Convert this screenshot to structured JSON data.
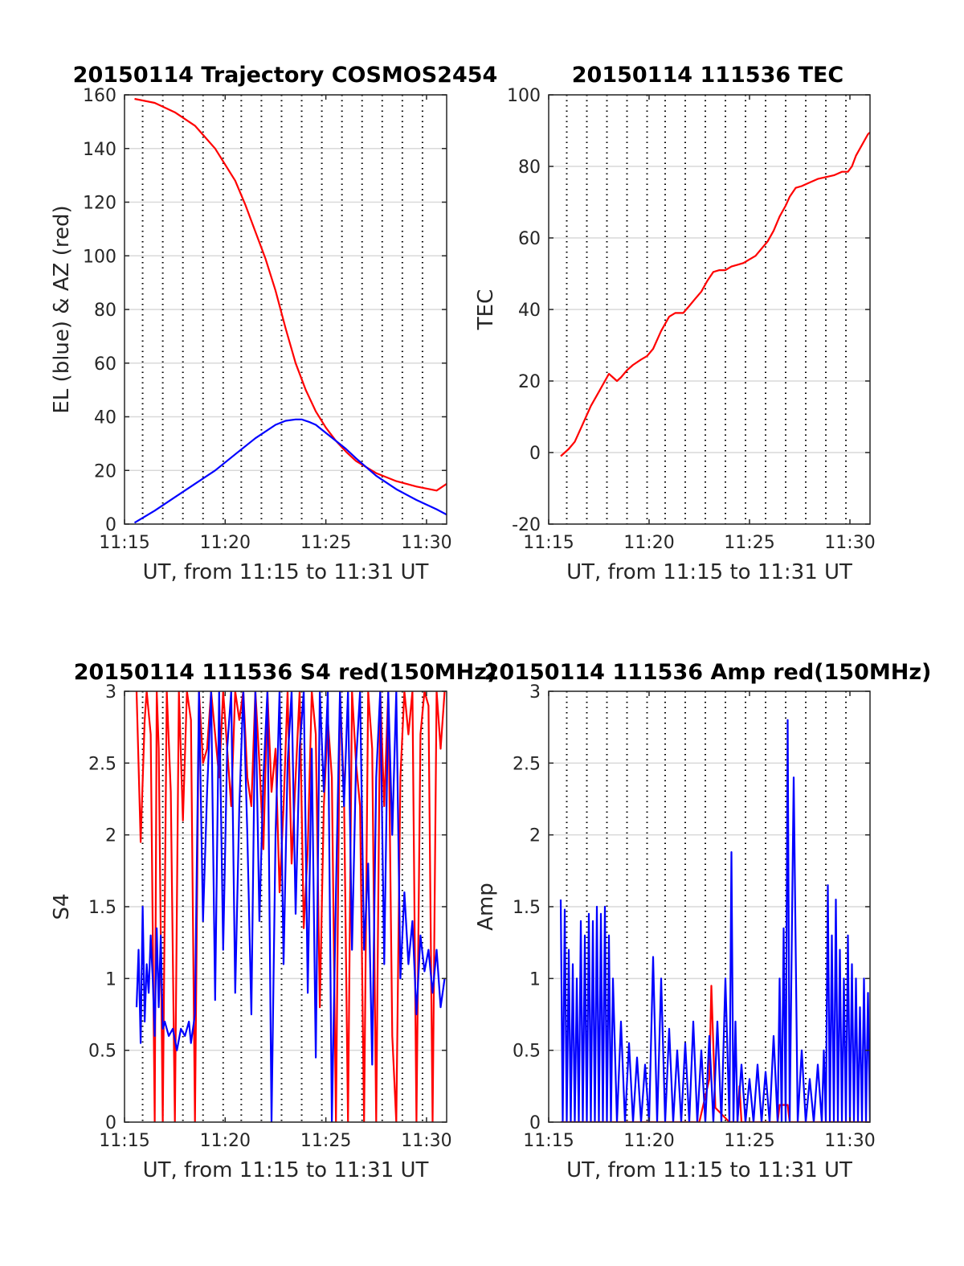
{
  "colors": {
    "az": "#ff0000",
    "el": "#0000ff",
    "tec": "#ff0000",
    "s4_red": "#ff0000",
    "s4_blue": "#0000ff",
    "amp_red": "#ff0000",
    "amp_blue": "#0000ff",
    "grid": "#d9d9d9",
    "dotted": "#000000",
    "axes": "#262626"
  },
  "chart_data": [
    {
      "type": "line",
      "title": "20150114 Trajectory COSMOS2454",
      "xlabel": "UT, from 11:15 to 11:31 UT",
      "ylabel": "EL (blue) & AZ (red)",
      "xlim": [
        15,
        31
      ],
      "ylim": [
        0,
        160
      ],
      "xticks": [
        15,
        20,
        25,
        30
      ],
      "xtick_labels": [
        "11:15",
        "11:20",
        "11:25",
        "11:30"
      ],
      "yticks": [
        0,
        20,
        40,
        60,
        80,
        100,
        120,
        140,
        160
      ],
      "ytick_labels": [
        "0",
        "20",
        "40",
        "60",
        "80",
        "100",
        "120",
        "140",
        "160"
      ],
      "grid": true,
      "dotted_verticals": [
        15.9,
        16.9,
        17.9,
        18.9,
        19.9,
        20.8,
        21.8,
        22.8,
        23.8,
        24.8,
        25.8,
        26.8,
        27.8,
        28.8,
        29.8
      ],
      "series": [
        {
          "color": "az",
          "x": [
            15.5,
            16.5,
            17.5,
            18.5,
            19.5,
            20.5,
            21.0,
            21.5,
            22.0,
            22.5,
            23.0,
            23.5,
            24.0,
            24.5,
            25.0,
            25.5,
            26.0,
            26.5,
            27.5,
            28.5,
            29.5,
            30.5,
            31.0
          ],
          "y": [
            158.5,
            157,
            153.5,
            148.5,
            140,
            128,
            119,
            109,
            99,
            87,
            73,
            60,
            50,
            42,
            36,
            31,
            27,
            23.5,
            19,
            16,
            14,
            12.5,
            15
          ]
        },
        {
          "color": "el",
          "x": [
            15.5,
            16.5,
            17.5,
            18.5,
            19.5,
            20.5,
            21.5,
            22.5,
            23.0,
            23.5,
            23.8,
            24.2,
            24.5,
            25.0,
            25.5,
            26.0,
            26.5,
            27.5,
            28.5,
            29.5,
            30.5,
            31.0
          ],
          "y": [
            0.5,
            5,
            10,
            15,
            20,
            26,
            32,
            37,
            38.5,
            39,
            39,
            38,
            37,
            34,
            31,
            28,
            24.5,
            18,
            13,
            9,
            5.5,
            3.5
          ]
        }
      ]
    },
    {
      "type": "line",
      "title": "20150114 111536 TEC",
      "xlabel": "UT, from 11:15 to 11:31 UT",
      "ylabel": "TEC",
      "xlim": [
        15,
        31
      ],
      "ylim": [
        -20,
        100
      ],
      "xticks": [
        15,
        20,
        25,
        30
      ],
      "xtick_labels": [
        "11:15",
        "11:20",
        "11:25",
        "11:30"
      ],
      "yticks": [
        -20,
        0,
        20,
        40,
        60,
        80,
        100
      ],
      "ytick_labels": [
        "-20",
        "0",
        "20",
        "40",
        "60",
        "80",
        "100"
      ],
      "grid": true,
      "dotted_verticals": [
        15.9,
        16.9,
        17.9,
        18.9,
        19.9,
        20.8,
        21.8,
        22.8,
        23.8,
        24.8,
        25.8,
        26.8,
        27.8,
        28.8,
        29.8
      ],
      "series": [
        {
          "color": "tec",
          "x": [
            15.6,
            15.8,
            16.0,
            16.3,
            16.7,
            17.1,
            17.5,
            17.8,
            18.0,
            18.2,
            18.4,
            18.6,
            18.9,
            19.2,
            19.6,
            19.9,
            20.2,
            20.6,
            21.0,
            21.3,
            21.5,
            21.7,
            22.0,
            22.3,
            22.6,
            22.9,
            23.2,
            23.5,
            23.8,
            24.1,
            24.4,
            24.7,
            25.0,
            25.3,
            25.6,
            25.9,
            26.2,
            26.5,
            26.8,
            27.0,
            27.3,
            27.6,
            28.0,
            28.4,
            28.8,
            29.2,
            29.6,
            29.9,
            30.1,
            30.3,
            30.6,
            30.9,
            31.0
          ],
          "y": [
            -1,
            0,
            1,
            3,
            8,
            13,
            17,
            20,
            22,
            21,
            20,
            21,
            23,
            24.5,
            26,
            27,
            29,
            34,
            38,
            39,
            39,
            39,
            41,
            43,
            45,
            48,
            50.5,
            51,
            51,
            52,
            52.5,
            53,
            54,
            55,
            57,
            59,
            62,
            66,
            69,
            71.5,
            74,
            74.5,
            75.5,
            76.5,
            77,
            77.5,
            78.5,
            78.5,
            80,
            83,
            86,
            89,
            89.5
          ]
        }
      ]
    },
    {
      "type": "line",
      "title": "20150114 111536 S4 red(150MHz)",
      "xlabel": "UT, from 11:15 to 11:31 UT",
      "ylabel": "S4",
      "xlim": [
        15,
        31
      ],
      "ylim": [
        0,
        3
      ],
      "xticks": [
        15,
        20,
        25,
        30
      ],
      "xtick_labels": [
        "11:15",
        "11:20",
        "11:25",
        "11:30"
      ],
      "yticks": [
        0,
        0.5,
        1,
        1.5,
        2,
        2.5,
        3
      ],
      "ytick_labels": [
        "0",
        "0.5",
        "1",
        "1.5",
        "2",
        "2.5",
        "3"
      ],
      "grid": true,
      "dotted_verticals": [
        15.9,
        16.9,
        17.9,
        18.9,
        19.9,
        20.8,
        21.8,
        22.8,
        23.8,
        24.8,
        25.8,
        26.8,
        27.8,
        28.8,
        29.8
      ],
      "series": [
        {
          "color": "s4_red",
          "x": [
            15.6,
            15.8,
            16.0,
            16.1,
            16.3,
            16.5,
            16.6,
            16.7,
            16.9,
            17.1,
            17.3,
            17.5,
            17.7,
            17.9,
            18.1,
            18.3,
            18.5,
            18.7,
            18.9,
            19.1,
            19.3,
            19.5,
            19.7,
            19.9,
            20.1,
            20.3,
            20.5,
            20.7,
            20.9,
            21.1,
            21.3,
            21.5,
            21.7,
            21.9,
            22.1,
            22.3,
            22.5,
            22.7,
            22.9,
            23.1,
            23.3,
            23.5,
            23.7,
            23.9,
            24.1,
            24.3,
            24.5,
            24.7,
            24.9,
            25.1,
            25.3,
            25.5,
            25.7,
            25.9,
            26.1,
            26.3,
            26.5,
            26.7,
            26.9,
            27.1,
            27.3,
            27.5,
            27.7,
            27.9,
            28.1,
            28.3,
            28.5,
            28.7,
            28.9,
            29.1,
            29.3,
            29.5,
            29.7,
            29.9,
            30.1,
            30.3,
            30.5,
            30.7,
            30.9
          ],
          "y": [
            3,
            1.95,
            2.8,
            3,
            2.7,
            0,
            3,
            2.6,
            0,
            3,
            2.3,
            0,
            3,
            2.1,
            3,
            2.8,
            0,
            3,
            2.5,
            2.6,
            3,
            2.7,
            2.4,
            3,
            2.6,
            2.2,
            3,
            2.8,
            3,
            2.4,
            2.2,
            3,
            2.5,
            1.9,
            3,
            2.3,
            2.6,
            1.6,
            2.2,
            3,
            1.8,
            2.4,
            3,
            1.35,
            1.9,
            3,
            2.7,
            0.8,
            2.2,
            2.8,
            2.4,
            0,
            3,
            2.3,
            0,
            3,
            2.5,
            2.2,
            0,
            3,
            2.6,
            0,
            3,
            2.2,
            3,
            0.6,
            0,
            2.4,
            3,
            2.7,
            3,
            0,
            2.7,
            3,
            2.9,
            0,
            3,
            2.6,
            3
          ]
        },
        {
          "color": "s4_blue",
          "x": [
            15.6,
            15.7,
            15.8,
            15.9,
            16.0,
            16.1,
            16.2,
            16.3,
            16.4,
            16.5,
            16.6,
            16.7,
            16.8,
            16.9,
            17.0,
            17.2,
            17.4,
            17.6,
            17.8,
            18.0,
            18.2,
            18.3,
            18.5,
            18.7,
            18.9,
            19.1,
            19.3,
            19.5,
            19.7,
            19.9,
            20.1,
            20.3,
            20.5,
            20.7,
            20.9,
            21.1,
            21.3,
            21.5,
            21.7,
            21.9,
            22.1,
            22.3,
            22.5,
            22.7,
            22.9,
            23.1,
            23.3,
            23.5,
            23.7,
            23.9,
            24.1,
            24.3,
            24.5,
            24.7,
            24.9,
            25.1,
            25.3,
            25.5,
            25.7,
            25.9,
            26.1,
            26.3,
            26.5,
            26.7,
            26.9,
            27.1,
            27.3,
            27.5,
            27.7,
            27.9,
            28.1,
            28.3,
            28.5,
            28.7,
            28.9,
            29.1,
            29.3,
            29.5,
            29.7,
            29.9,
            30.1,
            30.3,
            30.5,
            30.7,
            30.9
          ],
          "y": [
            0.8,
            1.2,
            0.55,
            1.5,
            0.7,
            1.1,
            0.9,
            1.3,
            1.0,
            0.6,
            1.35,
            0.8,
            1.3,
            0.65,
            0.7,
            0.6,
            0.65,
            0.5,
            0.65,
            0.6,
            0.7,
            0.55,
            0.75,
            3,
            1.4,
            2.3,
            3,
            0.85,
            3,
            1.2,
            2.6,
            3,
            0.9,
            2.2,
            3,
            2.0,
            0.75,
            3,
            1.4,
            2.4,
            3,
            0.0,
            2.0,
            3,
            1.1,
            2.5,
            3,
            1.45,
            2.6,
            3,
            0.9,
            2.6,
            0.45,
            3,
            2.3,
            3,
            0,
            1.6,
            3,
            2.2,
            3,
            1.2,
            2.5,
            3,
            1.2,
            1.8,
            0.4,
            2.4,
            3,
            1.1,
            3,
            2.0,
            3,
            1.0,
            1.6,
            1.1,
            1.4,
            0.75,
            1.3,
            1.05,
            1.2,
            0.9,
            1.2,
            0.8,
            1.0
          ]
        }
      ]
    },
    {
      "type": "line",
      "title": "20150114 111536 Amp red(150MHz)",
      "xlabel": "UT, from 11:15 to 11:31 UT",
      "ylabel": "Amp",
      "xlim": [
        15,
        31
      ],
      "ylim": [
        0,
        3
      ],
      "xticks": [
        15,
        20,
        25,
        30
      ],
      "xtick_labels": [
        "11:15",
        "11:20",
        "11:25",
        "11:30"
      ],
      "yticks": [
        0,
        0.5,
        1,
        1.5,
        2,
        2.5,
        3
      ],
      "ytick_labels": [
        "0",
        "0.5",
        "1",
        "1.5",
        "2",
        "2.5",
        "3"
      ],
      "grid": true,
      "dotted_verticals": [
        15.9,
        16.9,
        17.9,
        18.9,
        19.9,
        20.8,
        21.8,
        22.8,
        23.8,
        24.8,
        25.8,
        26.8,
        27.8,
        28.8,
        29.8
      ],
      "series": [
        {
          "color": "amp_red",
          "x": [
            15.6,
            17.0,
            18.5,
            20.0,
            21.5,
            22.5,
            23.0,
            23.1,
            23.3,
            24.0,
            24.4,
            24.5,
            24.6,
            25.5,
            26.4,
            26.5,
            26.9,
            27.0,
            27.5,
            29.0,
            31.0
          ],
          "y": [
            0.0,
            0.0,
            0.0,
            0.0,
            0.0,
            0.0,
            0.3,
            0.95,
            0.1,
            0.0,
            0.0,
            0.25,
            0.0,
            0.0,
            0.0,
            0.12,
            0.12,
            0.0,
            0.0,
            0.0,
            0.0
          ]
        },
        {
          "color": "amp_blue",
          "x": [
            15.6,
            15.7,
            15.8,
            15.9,
            16.0,
            16.1,
            16.2,
            16.3,
            16.4,
            16.5,
            16.6,
            16.7,
            16.8,
            16.9,
            17.0,
            17.1,
            17.2,
            17.3,
            17.4,
            17.5,
            17.6,
            17.7,
            17.8,
            17.9,
            18.0,
            18.1,
            18.2,
            18.4,
            18.6,
            18.8,
            19.0,
            19.2,
            19.4,
            19.6,
            19.8,
            20.0,
            20.2,
            20.4,
            20.6,
            20.8,
            21.0,
            21.2,
            21.4,
            21.6,
            21.8,
            22.0,
            22.2,
            22.4,
            22.6,
            22.8,
            23.0,
            23.2,
            23.4,
            23.6,
            23.8,
            24.0,
            24.1,
            24.2,
            24.3,
            24.4,
            24.6,
            24.8,
            25.0,
            25.2,
            25.4,
            25.6,
            25.8,
            26.0,
            26.2,
            26.4,
            26.5,
            26.6,
            26.7,
            26.8,
            26.9,
            27.0,
            27.2,
            27.4,
            27.6,
            27.8,
            28.0,
            28.2,
            28.4,
            28.6,
            28.7,
            28.8,
            28.9,
            29.0,
            29.1,
            29.2,
            29.3,
            29.4,
            29.5,
            29.6,
            29.7,
            29.8,
            29.9,
            30.0,
            30.1,
            30.2,
            30.3,
            30.4,
            30.5,
            30.6,
            30.7,
            30.8,
            30.9,
            31.0
          ],
          "y": [
            1.55,
            0.0,
            1.48,
            0.0,
            1.2,
            0.0,
            1.1,
            0.0,
            1.0,
            0.0,
            1.4,
            0.0,
            1.3,
            0.0,
            1.45,
            0.0,
            1.4,
            0.0,
            1.5,
            0.0,
            1.45,
            0.0,
            1.5,
            0.0,
            1.3,
            0.0,
            1.0,
            0.0,
            0.7,
            0.0,
            0.55,
            0.0,
            0.45,
            0.0,
            0.4,
            0.0,
            1.15,
            0.0,
            1.0,
            0.0,
            0.65,
            0.0,
            0.5,
            0.0,
            0.55,
            0.0,
            0.7,
            0.0,
            0.5,
            0.0,
            0.6,
            0.0,
            0.7,
            0.0,
            1.0,
            0.0,
            1.88,
            0.0,
            0.7,
            0.0,
            0.4,
            0.0,
            0.3,
            0.0,
            0.4,
            0.0,
            0.35,
            0.0,
            0.6,
            0.0,
            1.0,
            0.0,
            1.35,
            0.0,
            2.8,
            0.0,
            2.4,
            0.0,
            0.5,
            0.0,
            0.3,
            0.0,
            0.4,
            0.0,
            0.5,
            0.0,
            1.65,
            0.0,
            1.3,
            0.0,
            1.55,
            0.0,
            1.2,
            0.0,
            1.0,
            0.0,
            1.3,
            0.0,
            1.1,
            0.0,
            1.0,
            0.0,
            0.8,
            0.0,
            1.0,
            0.0,
            0.9,
            0.0
          ]
        }
      ]
    }
  ]
}
